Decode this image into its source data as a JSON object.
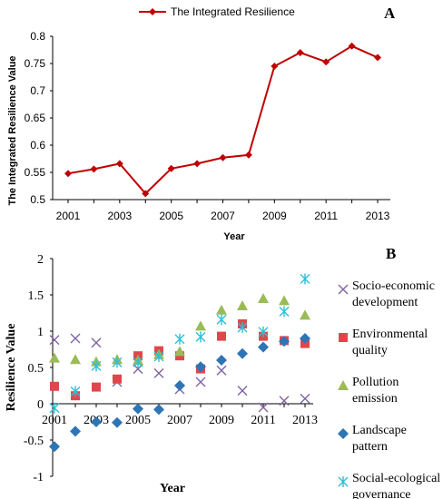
{
  "chart_data": [
    {
      "type": "line",
      "panel_label": "A",
      "title": "",
      "xlabel": "Year",
      "ylabel": "The Integrated Resilience Value",
      "xlim": [
        2001,
        2013
      ],
      "ylim": [
        0.5,
        0.8
      ],
      "x_ticks": [
        "2001",
        "2003",
        "2005",
        "2007",
        "2009",
        "2011",
        "2013"
      ],
      "y_ticks": [
        "0.5",
        "0.55",
        "0.6",
        "0.65",
        "0.7",
        "0.75",
        "0.8"
      ],
      "legend_position": "top-center",
      "colors": {
        "series": "#c00000"
      },
      "x": [
        2001,
        2002,
        2003,
        2004,
        2005,
        2006,
        2007,
        2008,
        2009,
        2010,
        2011,
        2012,
        2013
      ],
      "series": [
        {
          "name": "The Integrated Resilience",
          "values": [
            0.548,
            0.556,
            0.566,
            0.511,
            0.557,
            0.566,
            0.577,
            0.582,
            0.745,
            0.77,
            0.753,
            0.782,
            0.761
          ]
        }
      ]
    },
    {
      "type": "scatter",
      "panel_label": "B",
      "title": "",
      "xlabel": "Year",
      "ylabel": "Resilience Value",
      "xlim": [
        2001,
        2013
      ],
      "ylim": [
        -1,
        2
      ],
      "x_ticks": [
        "2001",
        "2003",
        "2005",
        "2007",
        "2009",
        "2011",
        "2013"
      ],
      "y_ticks": [
        "-1",
        "-0.5",
        "0",
        "0.5",
        "1",
        "1.5",
        "2"
      ],
      "legend_position": "right",
      "x": [
        2001,
        2002,
        2003,
        2004,
        2005,
        2006,
        2007,
        2008,
        2009,
        2010,
        2011,
        2012,
        2013
      ],
      "series": [
        {
          "name": "Socio-economic development",
          "legend_lines": [
            "Socio-economic",
            "development"
          ],
          "marker": "x",
          "color": "#8064a2",
          "values": [
            0.88,
            0.9,
            0.84,
            0.3,
            0.48,
            0.42,
            0.2,
            0.3,
            0.46,
            0.18,
            -0.05,
            0.04,
            0.07
          ]
        },
        {
          "name": "Environmental quality",
          "legend_lines": [
            "Environmental",
            "quality"
          ],
          "marker": "square",
          "color": "#e0474c",
          "values": [
            0.24,
            0.11,
            0.23,
            0.34,
            0.66,
            0.73,
            0.66,
            0.48,
            0.93,
            1.1,
            0.93,
            0.87,
            0.83
          ]
        },
        {
          "name": "Pollution emission",
          "legend_lines": [
            "Pollution",
            "emission"
          ],
          "marker": "triangle",
          "color": "#9bbb59",
          "values": [
            0.63,
            0.61,
            0.58,
            0.61,
            0.6,
            0.68,
            0.72,
            1.07,
            1.29,
            1.35,
            1.45,
            1.42,
            1.22
          ]
        },
        {
          "name": "Landscape pattern",
          "legend_lines": [
            "Landscape",
            "pattern"
          ],
          "marker": "diamond",
          "color": "#2e75b6",
          "values": [
            -0.59,
            -0.38,
            -0.25,
            -0.26,
            -0.07,
            -0.08,
            0.25,
            0.51,
            0.6,
            0.69,
            0.78,
            0.86,
            0.9
          ]
        },
        {
          "name": "Social-ecological governance",
          "legend_lines": [
            "Social-ecological",
            "governance"
          ],
          "marker": "asterisk",
          "color": "#2fbfd6",
          "values": [
            -0.06,
            0.17,
            0.52,
            0.57,
            0.57,
            0.65,
            0.89,
            0.92,
            1.16,
            1.05,
            0.99,
            1.27,
            1.72
          ]
        }
      ]
    }
  ]
}
